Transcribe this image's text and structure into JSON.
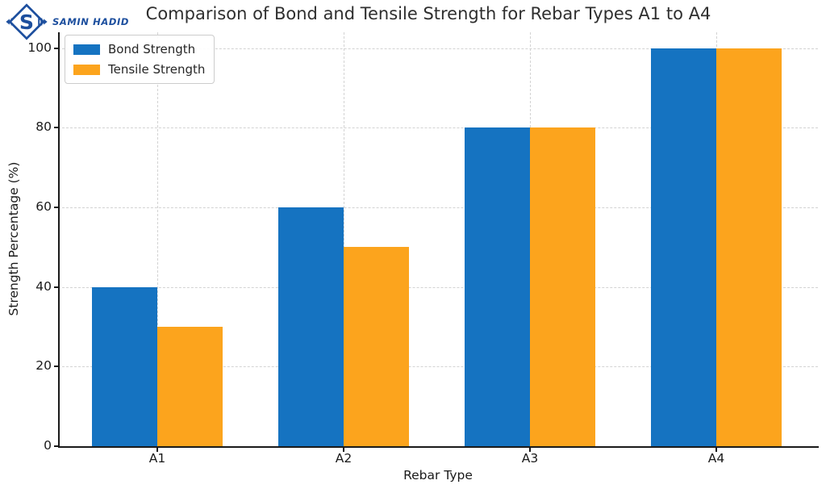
{
  "logo": {
    "brand": "SAMIN HADID",
    "color": "#1d4f9e"
  },
  "chart_data": {
    "type": "bar",
    "title": "Comparison of Bond and Tensile Strength for Rebar Types A1 to A4",
    "categories": [
      "A1",
      "A2",
      "A3",
      "A4"
    ],
    "series": [
      {
        "name": "Bond Strength",
        "color": "#1573c1",
        "values": [
          40,
          60,
          80,
          100
        ]
      },
      {
        "name": "Tensile Strength",
        "color": "#fca41d",
        "values": [
          30,
          50,
          80,
          100
        ]
      }
    ],
    "xlabel": "Rebar Type",
    "ylabel": "Strength Percentage (%)",
    "yticks": [
      0,
      20,
      40,
      60,
      80,
      100
    ],
    "ylim": [
      0,
      104
    ],
    "grid": "dashed-both-axes",
    "legend_position": "upper-left",
    "background": "#ffffff"
  }
}
